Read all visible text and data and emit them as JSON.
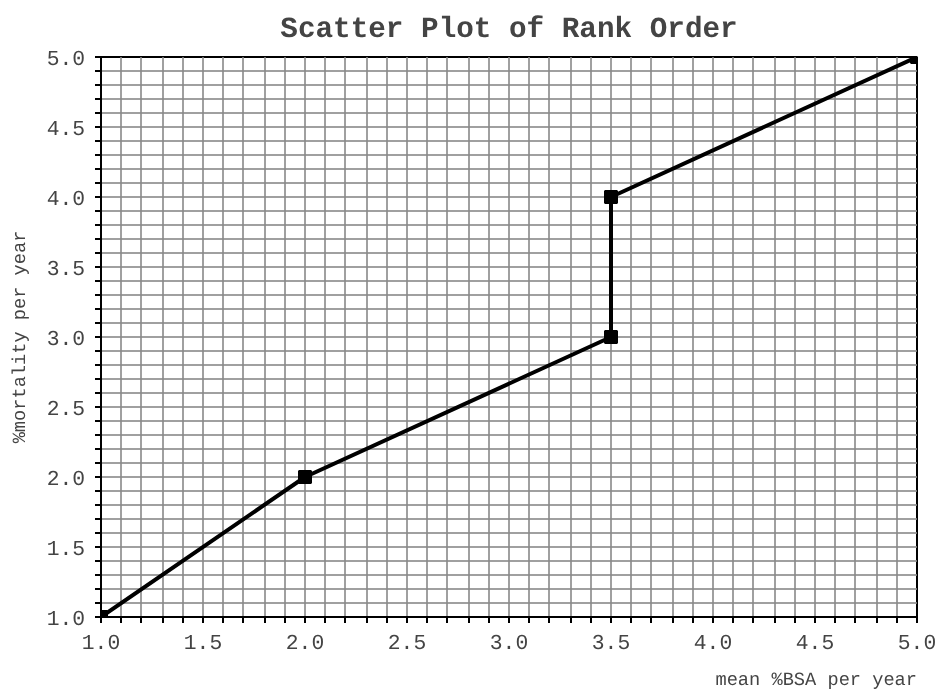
{
  "chart_data": {
    "type": "line",
    "title": "Scatter Plot of Rank Order",
    "xlabel": "mean %BSA per year",
    "ylabel": "%mortality per year",
    "x": [
      1,
      2,
      3.5,
      3.5,
      5
    ],
    "series": [
      {
        "color": "#000000",
        "values": [
          1,
          2,
          3,
          4,
          5
        ]
      }
    ],
    "marker": "square",
    "line_style": "solid",
    "grid": true,
    "xlim": [
      1,
      5
    ],
    "ylim": [
      1,
      5
    ],
    "xticks": [
      {
        "value": 1,
        "label": "1.0"
      },
      {
        "value": 1.1,
        "label": null
      },
      {
        "value": 1.2,
        "label": null
      },
      {
        "value": 1.3,
        "label": null
      },
      {
        "value": 1.4,
        "label": null
      },
      {
        "value": 1.5,
        "label": "1.5"
      },
      {
        "value": 1.6,
        "label": null
      },
      {
        "value": 1.7,
        "label": null
      },
      {
        "value": 1.8,
        "label": null
      },
      {
        "value": 1.9,
        "label": null
      },
      {
        "value": 2,
        "label": "2.0"
      },
      {
        "value": 2.1,
        "label": null
      },
      {
        "value": 2.2,
        "label": null
      },
      {
        "value": 2.3,
        "label": null
      },
      {
        "value": 2.4,
        "label": null
      },
      {
        "value": 2.5,
        "label": "2.5"
      },
      {
        "value": 2.6,
        "label": null
      },
      {
        "value": 2.7,
        "label": null
      },
      {
        "value": 2.8,
        "label": null
      },
      {
        "value": 2.9,
        "label": null
      },
      {
        "value": 3,
        "label": "3.0"
      },
      {
        "value": 3.1,
        "label": null
      },
      {
        "value": 3.2,
        "label": null
      },
      {
        "value": 3.3,
        "label": null
      },
      {
        "value": 3.4,
        "label": null
      },
      {
        "value": 3.5,
        "label": "3.5"
      },
      {
        "value": 3.6,
        "label": null
      },
      {
        "value": 3.7,
        "label": null
      },
      {
        "value": 3.8,
        "label": null
      },
      {
        "value": 3.9,
        "label": null
      },
      {
        "value": 4,
        "label": "4.0"
      },
      {
        "value": 4.1,
        "label": null
      },
      {
        "value": 4.2,
        "label": null
      },
      {
        "value": 4.3,
        "label": null
      },
      {
        "value": 4.4,
        "label": null
      },
      {
        "value": 4.5,
        "label": "4.5"
      },
      {
        "value": 4.6,
        "label": null
      },
      {
        "value": 4.7,
        "label": null
      },
      {
        "value": 4.8,
        "label": null
      },
      {
        "value": 4.9,
        "label": null
      },
      {
        "value": 5,
        "label": "5.0"
      }
    ],
    "yticks": [
      {
        "value": 1,
        "label": "1.0"
      },
      {
        "value": 1.1,
        "label": null
      },
      {
        "value": 1.2,
        "label": null
      },
      {
        "value": 1.3,
        "label": null
      },
      {
        "value": 1.4,
        "label": null
      },
      {
        "value": 1.5,
        "label": "1.5"
      },
      {
        "value": 1.6,
        "label": null
      },
      {
        "value": 1.7,
        "label": null
      },
      {
        "value": 1.8,
        "label": null
      },
      {
        "value": 1.9,
        "label": null
      },
      {
        "value": 2,
        "label": "2.0"
      },
      {
        "value": 2.1,
        "label": null
      },
      {
        "value": 2.2,
        "label": null
      },
      {
        "value": 2.3,
        "label": null
      },
      {
        "value": 2.4,
        "label": null
      },
      {
        "value": 2.5,
        "label": "2.5"
      },
      {
        "value": 2.6,
        "label": null
      },
      {
        "value": 2.7,
        "label": null
      },
      {
        "value": 2.8,
        "label": null
      },
      {
        "value": 2.9,
        "label": null
      },
      {
        "value": 3,
        "label": "3.0"
      },
      {
        "value": 3.1,
        "label": null
      },
      {
        "value": 3.2,
        "label": null
      },
      {
        "value": 3.3,
        "label": null
      },
      {
        "value": 3.4,
        "label": null
      },
      {
        "value": 3.5,
        "label": "3.5"
      },
      {
        "value": 3.6,
        "label": null
      },
      {
        "value": 3.7,
        "label": null
      },
      {
        "value": 3.8,
        "label": null
      },
      {
        "value": 3.9,
        "label": null
      },
      {
        "value": 4,
        "label": "4.0"
      },
      {
        "value": 4.1,
        "label": null
      },
      {
        "value": 4.2,
        "label": null
      },
      {
        "value": 4.3,
        "label": null
      },
      {
        "value": 4.4,
        "label": null
      },
      {
        "value": 4.5,
        "label": "4.5"
      },
      {
        "value": 4.6,
        "label": null
      },
      {
        "value": 4.7,
        "label": null
      },
      {
        "value": 4.8,
        "label": null
      },
      {
        "value": 4.9,
        "label": null
      },
      {
        "value": 5,
        "label": "5.0"
      }
    ]
  }
}
